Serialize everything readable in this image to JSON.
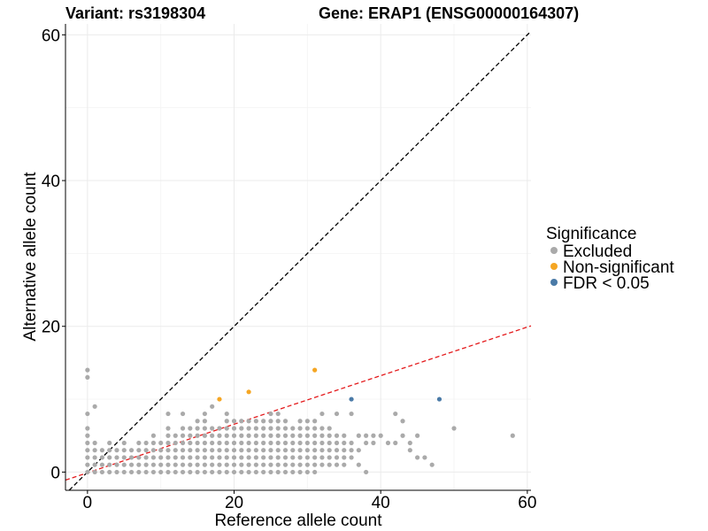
{
  "chart_data": {
    "type": "scatter",
    "title_left": "Variant: rs3198304",
    "title_right": "Gene: ERAP1 (ENSG00000164307)",
    "xlabel": "Reference allele count",
    "ylabel": "Alternative allele count",
    "xlim": [
      -3,
      60.5
    ],
    "ylim": [
      -2.5,
      61.5
    ],
    "xticks": [
      0,
      20,
      40,
      60
    ],
    "yticks": [
      0,
      20,
      40,
      60
    ],
    "grid": true,
    "legend": {
      "title": "Significance",
      "position": "right",
      "entries": [
        {
          "label": "Excluded",
          "color": "#aaaaaa"
        },
        {
          "label": "Non-significant",
          "color": "#f5a623"
        },
        {
          "label": "FDR < 0.05",
          "color": "#4a7aa7"
        }
      ]
    },
    "reference_lines": [
      {
        "name": "identity",
        "color": "#000000",
        "dash": "dashed",
        "slope": 1,
        "intercept": 0
      },
      {
        "name": "fit",
        "color": "#e41a1c",
        "dash": "dashed",
        "slope": 0.3333,
        "intercept": -0.1
      }
    ],
    "series": [
      {
        "name": "Excluded",
        "color": "#aaaaaa",
        "points": [
          [
            0,
            0
          ],
          [
            0,
            1
          ],
          [
            0,
            2
          ],
          [
            0,
            3
          ],
          [
            0,
            4
          ],
          [
            0,
            5
          ],
          [
            0,
            6
          ],
          [
            0,
            8
          ],
          [
            0,
            13
          ],
          [
            0,
            14
          ],
          [
            1,
            0
          ],
          [
            1,
            1
          ],
          [
            1,
            2
          ],
          [
            1,
            3
          ],
          [
            1,
            4
          ],
          [
            1,
            9
          ],
          [
            2,
            0
          ],
          [
            2,
            1
          ],
          [
            2,
            2
          ],
          [
            2,
            3
          ],
          [
            3,
            0
          ],
          [
            3,
            1
          ],
          [
            3,
            2
          ],
          [
            3,
            3
          ],
          [
            3,
            4
          ],
          [
            4,
            0
          ],
          [
            4,
            1
          ],
          [
            4,
            2
          ],
          [
            4,
            3
          ],
          [
            5,
            0
          ],
          [
            5,
            1
          ],
          [
            5,
            2
          ],
          [
            5,
            3
          ],
          [
            5,
            4
          ],
          [
            6,
            0
          ],
          [
            6,
            1
          ],
          [
            6,
            2
          ],
          [
            6,
            3
          ],
          [
            7,
            0
          ],
          [
            7,
            1
          ],
          [
            7,
            2
          ],
          [
            7,
            3
          ],
          [
            7,
            4
          ],
          [
            8,
            0
          ],
          [
            8,
            1
          ],
          [
            8,
            2
          ],
          [
            8,
            3
          ],
          [
            8,
            4
          ],
          [
            9,
            0
          ],
          [
            9,
            1
          ],
          [
            9,
            2
          ],
          [
            9,
            3
          ],
          [
            9,
            4
          ],
          [
            9,
            5
          ],
          [
            10,
            0
          ],
          [
            10,
            1
          ],
          [
            10,
            2
          ],
          [
            10,
            3
          ],
          [
            10,
            4
          ],
          [
            11,
            0
          ],
          [
            11,
            1
          ],
          [
            11,
            2
          ],
          [
            11,
            3
          ],
          [
            11,
            4
          ],
          [
            11,
            5
          ],
          [
            11,
            6
          ],
          [
            11,
            8
          ],
          [
            12,
            0
          ],
          [
            12,
            1
          ],
          [
            12,
            2
          ],
          [
            12,
            3
          ],
          [
            12,
            4
          ],
          [
            12,
            5
          ],
          [
            13,
            0
          ],
          [
            13,
            1
          ],
          [
            13,
            2
          ],
          [
            13,
            3
          ],
          [
            13,
            4
          ],
          [
            13,
            5
          ],
          [
            13,
            6
          ],
          [
            13,
            8
          ],
          [
            14,
            0
          ],
          [
            14,
            1
          ],
          [
            14,
            2
          ],
          [
            14,
            3
          ],
          [
            14,
            4
          ],
          [
            14,
            5
          ],
          [
            14,
            6
          ],
          [
            15,
            0
          ],
          [
            15,
            1
          ],
          [
            15,
            2
          ],
          [
            15,
            3
          ],
          [
            15,
            4
          ],
          [
            15,
            5
          ],
          [
            15,
            6
          ],
          [
            15,
            7
          ],
          [
            16,
            0
          ],
          [
            16,
            1
          ],
          [
            16,
            2
          ],
          [
            16,
            3
          ],
          [
            16,
            4
          ],
          [
            16,
            5
          ],
          [
            16,
            6
          ],
          [
            16,
            7
          ],
          [
            16,
            8
          ],
          [
            17,
            0
          ],
          [
            17,
            1
          ],
          [
            17,
            2
          ],
          [
            17,
            3
          ],
          [
            17,
            4
          ],
          [
            17,
            5
          ],
          [
            17,
            6
          ],
          [
            17,
            9
          ],
          [
            18,
            0
          ],
          [
            18,
            1
          ],
          [
            18,
            2
          ],
          [
            18,
            3
          ],
          [
            18,
            4
          ],
          [
            18,
            5
          ],
          [
            18,
            6
          ],
          [
            19,
            0
          ],
          [
            19,
            1
          ],
          [
            19,
            2
          ],
          [
            19,
            3
          ],
          [
            19,
            4
          ],
          [
            19,
            5
          ],
          [
            19,
            6
          ],
          [
            19,
            7
          ],
          [
            19,
            8
          ],
          [
            20,
            0
          ],
          [
            20,
            1
          ],
          [
            20,
            2
          ],
          [
            20,
            3
          ],
          [
            20,
            4
          ],
          [
            20,
            5
          ],
          [
            20,
            6
          ],
          [
            20,
            7
          ],
          [
            21,
            0
          ],
          [
            21,
            1
          ],
          [
            21,
            2
          ],
          [
            21,
            3
          ],
          [
            21,
            4
          ],
          [
            21,
            5
          ],
          [
            21,
            6
          ],
          [
            21,
            7
          ],
          [
            22,
            0
          ],
          [
            22,
            1
          ],
          [
            22,
            2
          ],
          [
            22,
            3
          ],
          [
            22,
            4
          ],
          [
            22,
            5
          ],
          [
            22,
            6
          ],
          [
            22,
            7
          ],
          [
            23,
            0
          ],
          [
            23,
            1
          ],
          [
            23,
            2
          ],
          [
            23,
            3
          ],
          [
            23,
            4
          ],
          [
            23,
            5
          ],
          [
            23,
            6
          ],
          [
            23,
            7
          ],
          [
            24,
            0
          ],
          [
            24,
            1
          ],
          [
            24,
            2
          ],
          [
            24,
            3
          ],
          [
            24,
            4
          ],
          [
            24,
            5
          ],
          [
            24,
            6
          ],
          [
            24,
            7
          ],
          [
            25,
            0
          ],
          [
            25,
            1
          ],
          [
            25,
            2
          ],
          [
            25,
            3
          ],
          [
            25,
            4
          ],
          [
            25,
            5
          ],
          [
            25,
            6
          ],
          [
            25,
            7
          ],
          [
            25,
            8
          ],
          [
            26,
            0
          ],
          [
            26,
            1
          ],
          [
            26,
            2
          ],
          [
            26,
            3
          ],
          [
            26,
            4
          ],
          [
            26,
            5
          ],
          [
            26,
            6
          ],
          [
            26,
            7
          ],
          [
            26,
            8
          ],
          [
            27,
            0
          ],
          [
            27,
            1
          ],
          [
            27,
            2
          ],
          [
            27,
            3
          ],
          [
            27,
            4
          ],
          [
            27,
            5
          ],
          [
            27,
            6
          ],
          [
            27,
            7
          ],
          [
            28,
            0
          ],
          [
            28,
            1
          ],
          [
            28,
            2
          ],
          [
            28,
            3
          ],
          [
            28,
            4
          ],
          [
            28,
            5
          ],
          [
            28,
            6
          ],
          [
            29,
            0
          ],
          [
            29,
            1
          ],
          [
            29,
            2
          ],
          [
            29,
            3
          ],
          [
            29,
            4
          ],
          [
            29,
            5
          ],
          [
            29,
            6
          ],
          [
            29,
            7
          ],
          [
            30,
            0
          ],
          [
            30,
            1
          ],
          [
            30,
            2
          ],
          [
            30,
            3
          ],
          [
            30,
            4
          ],
          [
            30,
            5
          ],
          [
            30,
            6
          ],
          [
            30,
            7
          ],
          [
            31,
            0
          ],
          [
            31,
            1
          ],
          [
            31,
            2
          ],
          [
            31,
            3
          ],
          [
            31,
            4
          ],
          [
            31,
            5
          ],
          [
            31,
            6
          ],
          [
            31,
            7
          ],
          [
            32,
            1
          ],
          [
            32,
            2
          ],
          [
            32,
            3
          ],
          [
            32,
            4
          ],
          [
            32,
            5
          ],
          [
            32,
            6
          ],
          [
            32,
            8
          ],
          [
            33,
            1
          ],
          [
            33,
            2
          ],
          [
            33,
            3
          ],
          [
            33,
            4
          ],
          [
            33,
            5
          ],
          [
            33,
            6
          ],
          [
            34,
            1
          ],
          [
            34,
            2
          ],
          [
            34,
            3
          ],
          [
            34,
            4
          ],
          [
            34,
            5
          ],
          [
            34,
            8
          ],
          [
            35,
            1
          ],
          [
            35,
            2
          ],
          [
            35,
            3
          ],
          [
            35,
            4
          ],
          [
            35,
            5
          ],
          [
            36,
            2
          ],
          [
            36,
            3
          ],
          [
            36,
            4
          ],
          [
            36,
            8
          ],
          [
            37,
            1
          ],
          [
            37,
            3
          ],
          [
            37,
            5
          ],
          [
            38,
            0
          ],
          [
            38,
            4
          ],
          [
            38,
            5
          ],
          [
            39,
            4
          ],
          [
            39,
            5
          ],
          [
            40,
            5
          ],
          [
            41,
            4
          ],
          [
            42,
            4
          ],
          [
            42,
            8
          ],
          [
            43,
            5
          ],
          [
            43,
            7
          ],
          [
            44,
            3
          ],
          [
            44,
            4
          ],
          [
            45,
            2
          ],
          [
            45,
            5
          ],
          [
            46,
            2
          ],
          [
            47,
            1
          ],
          [
            50,
            6
          ],
          [
            58,
            5
          ]
        ]
      },
      {
        "name": "Non-significant",
        "color": "#f5a623",
        "points": [
          [
            18,
            10
          ],
          [
            22,
            11
          ],
          [
            31,
            14
          ]
        ]
      },
      {
        "name": "FDR < 0.05",
        "color": "#4a7aa7",
        "points": [
          [
            36,
            10
          ],
          [
            48,
            10
          ]
        ]
      }
    ]
  }
}
